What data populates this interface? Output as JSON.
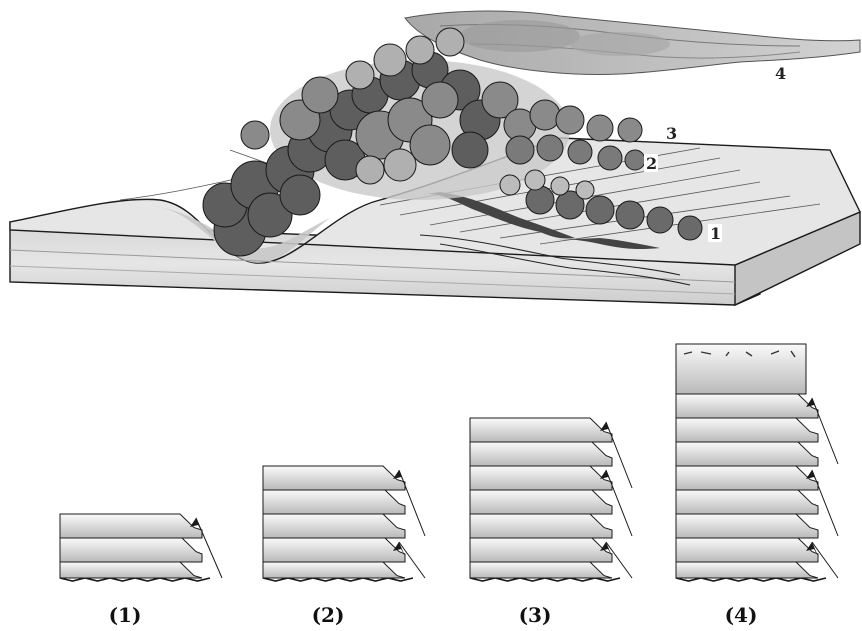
{
  "block_diagram": {
    "flow_labels": [
      "1",
      "2",
      "3",
      "4"
    ]
  },
  "columns": [
    {
      "label": "(1)",
      "units": 3,
      "arrows": 1,
      "ash_cap": false
    },
    {
      "label": "(2)",
      "units": 5,
      "arrows": 2,
      "ash_cap": false
    },
    {
      "label": "(3)",
      "units": 7,
      "arrows": 3,
      "ash_cap": false
    },
    {
      "label": "(4)",
      "units": 8,
      "arrows": 3,
      "ash_cap": true
    }
  ],
  "colors": {
    "cloud_dark": "#5e5e5e",
    "cloud_mid": "#8a8a8a",
    "cloud_light": "#b4b4b4",
    "ground_top": "#e3e3e3",
    "ground_side": "#cfcfcf",
    "stroke": "#1a1a1a"
  }
}
